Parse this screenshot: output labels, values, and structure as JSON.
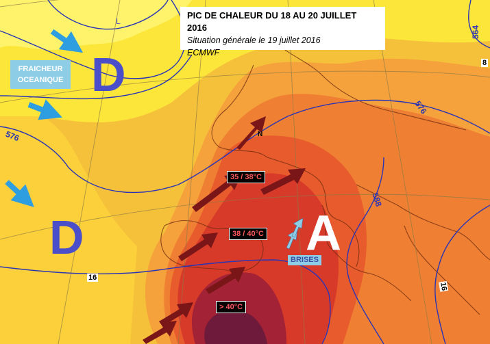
{
  "title": {
    "line1": "PIC DE CHALEUR DU 18 AU 20 JUILLET 2016",
    "line2": "Situation générale le 19 juillet 2016",
    "line3": "ECMWF"
  },
  "pressure_systems": {
    "low_1": "D",
    "low_2": "D",
    "high": "A",
    "small_low": "L"
  },
  "labels": {
    "fraicheur_line1": "FRAICHEUR",
    "fraicheur_line2": "OCEANIQUE",
    "temp_1": "35 / 38°C",
    "temp_2": "38 / 40°C",
    "temp_3": "> 40°C",
    "brises": "BRISES",
    "north_marker": "N"
  },
  "isolines": {
    "iso_576_left": "576",
    "iso_576_right": "576",
    "iso_564": "564",
    "iso_588": "588",
    "iso_16_left": "16",
    "iso_16_right": "16",
    "iso_8": "8"
  },
  "colors": {
    "low_letter": "#4a4fc9",
    "high_letter": "#ffffff",
    "cold_arrow": "#2f9ee0",
    "warm_arrow": "#7a1618",
    "brise_arrow": "#8ecde6",
    "isoline": "#2a35b5"
  }
}
